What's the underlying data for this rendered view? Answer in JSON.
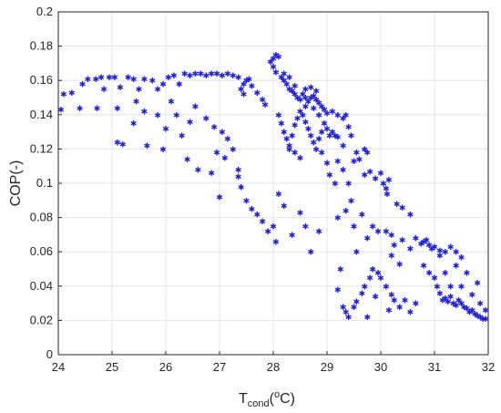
{
  "chart_data": {
    "type": "scatter",
    "marker": "asterisk",
    "color": "#0000ff",
    "grid": true,
    "xlim": [
      24,
      32
    ],
    "ylim": [
      0,
      0.2
    ],
    "xticks": [
      "24",
      "25",
      "26",
      "27",
      "28",
      "29",
      "30",
      "31",
      "32"
    ],
    "yticks": [
      "0",
      "0.02",
      "0.04",
      "0.06",
      "0.08",
      "0.1",
      "0.12",
      "0.14",
      "0.16",
      "0.18",
      "0.2"
    ],
    "xlabel": {
      "main": "T",
      "sub": "cond",
      "open": "(",
      "sup": "o",
      "unit": "C)"
    },
    "ylabel": "COP(-)",
    "series": [
      {
        "points": [
          [
            24.05,
            0.143
          ],
          [
            24.1,
            0.152
          ],
          [
            24.25,
            0.153
          ],
          [
            24.4,
            0.144
          ],
          [
            24.45,
            0.158
          ],
          [
            24.55,
            0.161
          ],
          [
            24.7,
            0.161
          ],
          [
            24.72,
            0.144
          ],
          [
            24.8,
            0.162
          ],
          [
            24.85,
            0.155
          ],
          [
            24.95,
            0.162
          ],
          [
            25.05,
            0.162
          ],
          [
            25.1,
            0.144
          ],
          [
            25.15,
            0.156
          ],
          [
            25.3,
            0.162
          ],
          [
            25.4,
            0.161
          ],
          [
            25.5,
            0.155
          ],
          [
            25.6,
            0.161
          ],
          [
            25.75,
            0.16
          ],
          [
            25.85,
            0.155
          ],
          [
            25.95,
            0.158
          ],
          [
            26.05,
            0.162
          ],
          [
            26.15,
            0.163
          ],
          [
            26.25,
            0.158
          ],
          [
            26.35,
            0.164
          ],
          [
            26.45,
            0.163
          ],
          [
            26.55,
            0.164
          ],
          [
            26.65,
            0.164
          ],
          [
            26.75,
            0.163
          ],
          [
            26.85,
            0.164
          ],
          [
            26.95,
            0.164
          ],
          [
            27.05,
            0.163
          ],
          [
            27.15,
            0.164
          ],
          [
            27.25,
            0.163
          ],
          [
            27.35,
            0.162
          ],
          [
            25.1,
            0.124
          ],
          [
            25.2,
            0.123
          ],
          [
            25.4,
            0.135
          ],
          [
            25.45,
            0.148
          ],
          [
            25.6,
            0.142
          ],
          [
            25.65,
            0.122
          ],
          [
            25.85,
            0.14
          ],
          [
            25.95,
            0.12
          ],
          [
            26.0,
            0.132
          ],
          [
            26.1,
            0.148
          ],
          [
            26.2,
            0.14
          ],
          [
            26.3,
            0.128
          ],
          [
            26.4,
            0.114
          ],
          [
            26.45,
            0.136
          ],
          [
            26.55,
            0.145
          ],
          [
            26.6,
            0.108
          ],
          [
            26.75,
            0.138
          ],
          [
            26.85,
            0.106
          ],
          [
            26.9,
            0.133
          ],
          [
            27.0,
            0.092
          ],
          [
            27.05,
            0.13
          ],
          [
            27.15,
            0.126
          ],
          [
            27.25,
            0.12
          ],
          [
            27.35,
            0.104
          ],
          [
            27.4,
            0.098
          ],
          [
            27.5,
            0.09
          ],
          [
            27.6,
            0.085
          ],
          [
            27.7,
            0.082
          ],
          [
            27.8,
            0.078
          ],
          [
            27.9,
            0.072
          ],
          [
            28.0,
            0.075
          ],
          [
            28.05,
            0.066
          ],
          [
            28.1,
            0.094
          ],
          [
            28.2,
            0.087
          ],
          [
            28.35,
            0.07
          ],
          [
            28.5,
            0.083
          ],
          [
            28.6,
            0.075
          ],
          [
            28.7,
            0.06
          ],
          [
            28.85,
            0.072
          ],
          [
            27.35,
            0.108
          ],
          [
            27.1,
            0.115
          ],
          [
            26.95,
            0.118
          ],
          [
            27.4,
            0.155
          ],
          [
            27.45,
            0.158
          ],
          [
            27.5,
            0.16
          ],
          [
            27.6,
            0.157
          ],
          [
            27.7,
            0.153
          ],
          [
            27.8,
            0.149
          ],
          [
            27.85,
            0.146
          ],
          [
            27.45,
            0.152
          ],
          [
            27.55,
            0.161
          ],
          [
            27.95,
            0.171
          ],
          [
            28.0,
            0.173
          ],
          [
            28.05,
            0.175
          ],
          [
            28.1,
            0.174
          ],
          [
            28.0,
            0.168
          ],
          [
            28.05,
            0.165
          ],
          [
            28.15,
            0.162
          ],
          [
            28.2,
            0.16
          ],
          [
            28.25,
            0.158
          ],
          [
            28.3,
            0.155
          ],
          [
            28.35,
            0.154
          ],
          [
            28.4,
            0.152
          ],
          [
            28.45,
            0.15
          ],
          [
            28.5,
            0.149
          ],
          [
            28.55,
            0.152
          ],
          [
            28.6,
            0.15
          ],
          [
            28.65,
            0.148
          ],
          [
            28.7,
            0.15
          ],
          [
            28.75,
            0.151
          ],
          [
            28.8,
            0.149
          ],
          [
            28.85,
            0.147
          ],
          [
            28.9,
            0.145
          ],
          [
            28.95,
            0.143
          ],
          [
            29.0,
            0.141
          ],
          [
            28.6,
            0.155
          ],
          [
            28.7,
            0.156
          ],
          [
            28.8,
            0.154
          ],
          [
            28.4,
            0.157
          ],
          [
            28.3,
            0.162
          ],
          [
            28.2,
            0.164
          ],
          [
            28.1,
            0.14
          ],
          [
            28.15,
            0.135
          ],
          [
            28.2,
            0.13
          ],
          [
            28.25,
            0.126
          ],
          [
            28.3,
            0.122
          ],
          [
            28.35,
            0.128
          ],
          [
            28.4,
            0.134
          ],
          [
            28.45,
            0.138
          ],
          [
            28.5,
            0.142
          ],
          [
            28.55,
            0.14
          ],
          [
            28.6,
            0.136
          ],
          [
            28.65,
            0.132
          ],
          [
            28.7,
            0.128
          ],
          [
            28.75,
            0.124
          ],
          [
            28.8,
            0.12
          ],
          [
            28.85,
            0.126
          ],
          [
            28.9,
            0.13
          ],
          [
            28.95,
            0.135
          ],
          [
            29.0,
            0.132
          ],
          [
            29.05,
            0.128
          ],
          [
            29.1,
            0.13
          ],
          [
            29.15,
            0.128
          ],
          [
            29.2,
            0.127
          ],
          [
            28.4,
            0.118
          ],
          [
            28.5,
            0.115
          ],
          [
            28.3,
            0.12
          ],
          [
            28.6,
            0.145
          ],
          [
            28.75,
            0.144
          ],
          [
            28.85,
            0.14
          ],
          [
            29.1,
            0.142
          ],
          [
            29.2,
            0.14
          ],
          [
            29.3,
            0.138
          ],
          [
            29.35,
            0.14
          ],
          [
            29.4,
            0.133
          ],
          [
            29.45,
            0.128
          ],
          [
            28.9,
            0.118
          ],
          [
            29.0,
            0.112
          ],
          [
            29.05,
            0.105
          ],
          [
            29.2,
            0.113
          ],
          [
            29.3,
            0.108
          ],
          [
            29.4,
            0.1
          ],
          [
            29.5,
            0.113
          ],
          [
            29.55,
            0.118
          ],
          [
            29.6,
            0.114
          ],
          [
            29.7,
            0.105
          ],
          [
            29.8,
            0.107
          ],
          [
            29.9,
            0.103
          ],
          [
            30.0,
            0.106
          ],
          [
            30.05,
            0.1
          ],
          [
            30.1,
            0.097
          ],
          [
            30.12,
            0.094
          ],
          [
            30.15,
            0.102
          ],
          [
            29.7,
            0.12
          ],
          [
            29.75,
            0.118
          ],
          [
            29.3,
            0.122
          ],
          [
            29.15,
            0.1
          ],
          [
            29.2,
            0.08
          ],
          [
            29.35,
            0.084
          ],
          [
            29.45,
            0.09
          ],
          [
            29.5,
            0.075
          ],
          [
            29.65,
            0.082
          ],
          [
            29.75,
            0.068
          ],
          [
            29.85,
            0.075
          ],
          [
            29.95,
            0.072
          ],
          [
            30.1,
            0.072
          ],
          [
            30.2,
            0.07
          ],
          [
            30.25,
            0.064
          ],
          [
            30.4,
            0.067
          ],
          [
            30.55,
            0.062
          ],
          [
            30.65,
            0.068
          ],
          [
            30.75,
            0.065
          ],
          [
            30.8,
            0.066
          ],
          [
            30.85,
            0.067
          ],
          [
            30.9,
            0.064
          ],
          [
            30.95,
            0.062
          ],
          [
            31.0,
            0.063
          ],
          [
            31.1,
            0.061
          ],
          [
            31.2,
            0.06
          ],
          [
            31.3,
            0.063
          ],
          [
            31.4,
            0.06
          ],
          [
            31.5,
            0.057
          ],
          [
            30.3,
            0.088
          ],
          [
            30.4,
            0.086
          ],
          [
            30.55,
            0.082
          ],
          [
            30.2,
            0.058
          ],
          [
            30.35,
            0.053
          ],
          [
            29.2,
            0.038
          ],
          [
            29.3,
            0.028
          ],
          [
            29.35,
            0.025
          ],
          [
            29.4,
            0.022
          ],
          [
            29.5,
            0.028
          ],
          [
            29.55,
            0.031
          ],
          [
            29.65,
            0.036
          ],
          [
            29.7,
            0.04
          ],
          [
            29.8,
            0.045
          ],
          [
            29.85,
            0.05
          ],
          [
            29.95,
            0.048
          ],
          [
            30.0,
            0.045
          ],
          [
            30.1,
            0.04
          ],
          [
            30.2,
            0.035
          ],
          [
            30.25,
            0.032
          ],
          [
            30.35,
            0.028
          ],
          [
            30.45,
            0.032
          ],
          [
            30.55,
            0.025
          ],
          [
            30.65,
            0.03
          ],
          [
            29.75,
            0.022
          ],
          [
            29.9,
            0.034
          ],
          [
            30.15,
            0.026
          ],
          [
            29.25,
            0.05
          ],
          [
            29.55,
            0.06
          ],
          [
            30.8,
            0.052
          ],
          [
            30.9,
            0.048
          ],
          [
            31.0,
            0.045
          ],
          [
            31.05,
            0.04
          ],
          [
            31.1,
            0.036
          ],
          [
            31.15,
            0.032
          ],
          [
            31.2,
            0.033
          ],
          [
            31.25,
            0.031
          ],
          [
            31.3,
            0.034
          ],
          [
            31.35,
            0.03
          ],
          [
            31.4,
            0.029
          ],
          [
            31.45,
            0.032
          ],
          [
            31.5,
            0.03
          ],
          [
            31.55,
            0.028
          ],
          [
            31.6,
            0.027
          ],
          [
            31.65,
            0.025
          ],
          [
            31.7,
            0.026
          ],
          [
            31.75,
            0.024
          ],
          [
            31.8,
            0.023
          ],
          [
            31.85,
            0.022
          ],
          [
            31.9,
            0.021
          ],
          [
            31.95,
            0.021
          ],
          [
            31.3,
            0.04
          ],
          [
            31.5,
            0.04
          ],
          [
            31.7,
            0.035
          ],
          [
            31.85,
            0.03
          ],
          [
            31.95,
            0.026
          ],
          [
            31.2,
            0.048
          ],
          [
            31.6,
            0.048
          ],
          [
            31.8,
            0.042
          ],
          [
            31.1,
            0.058
          ],
          [
            31.4,
            0.052
          ]
        ]
      }
    ]
  }
}
